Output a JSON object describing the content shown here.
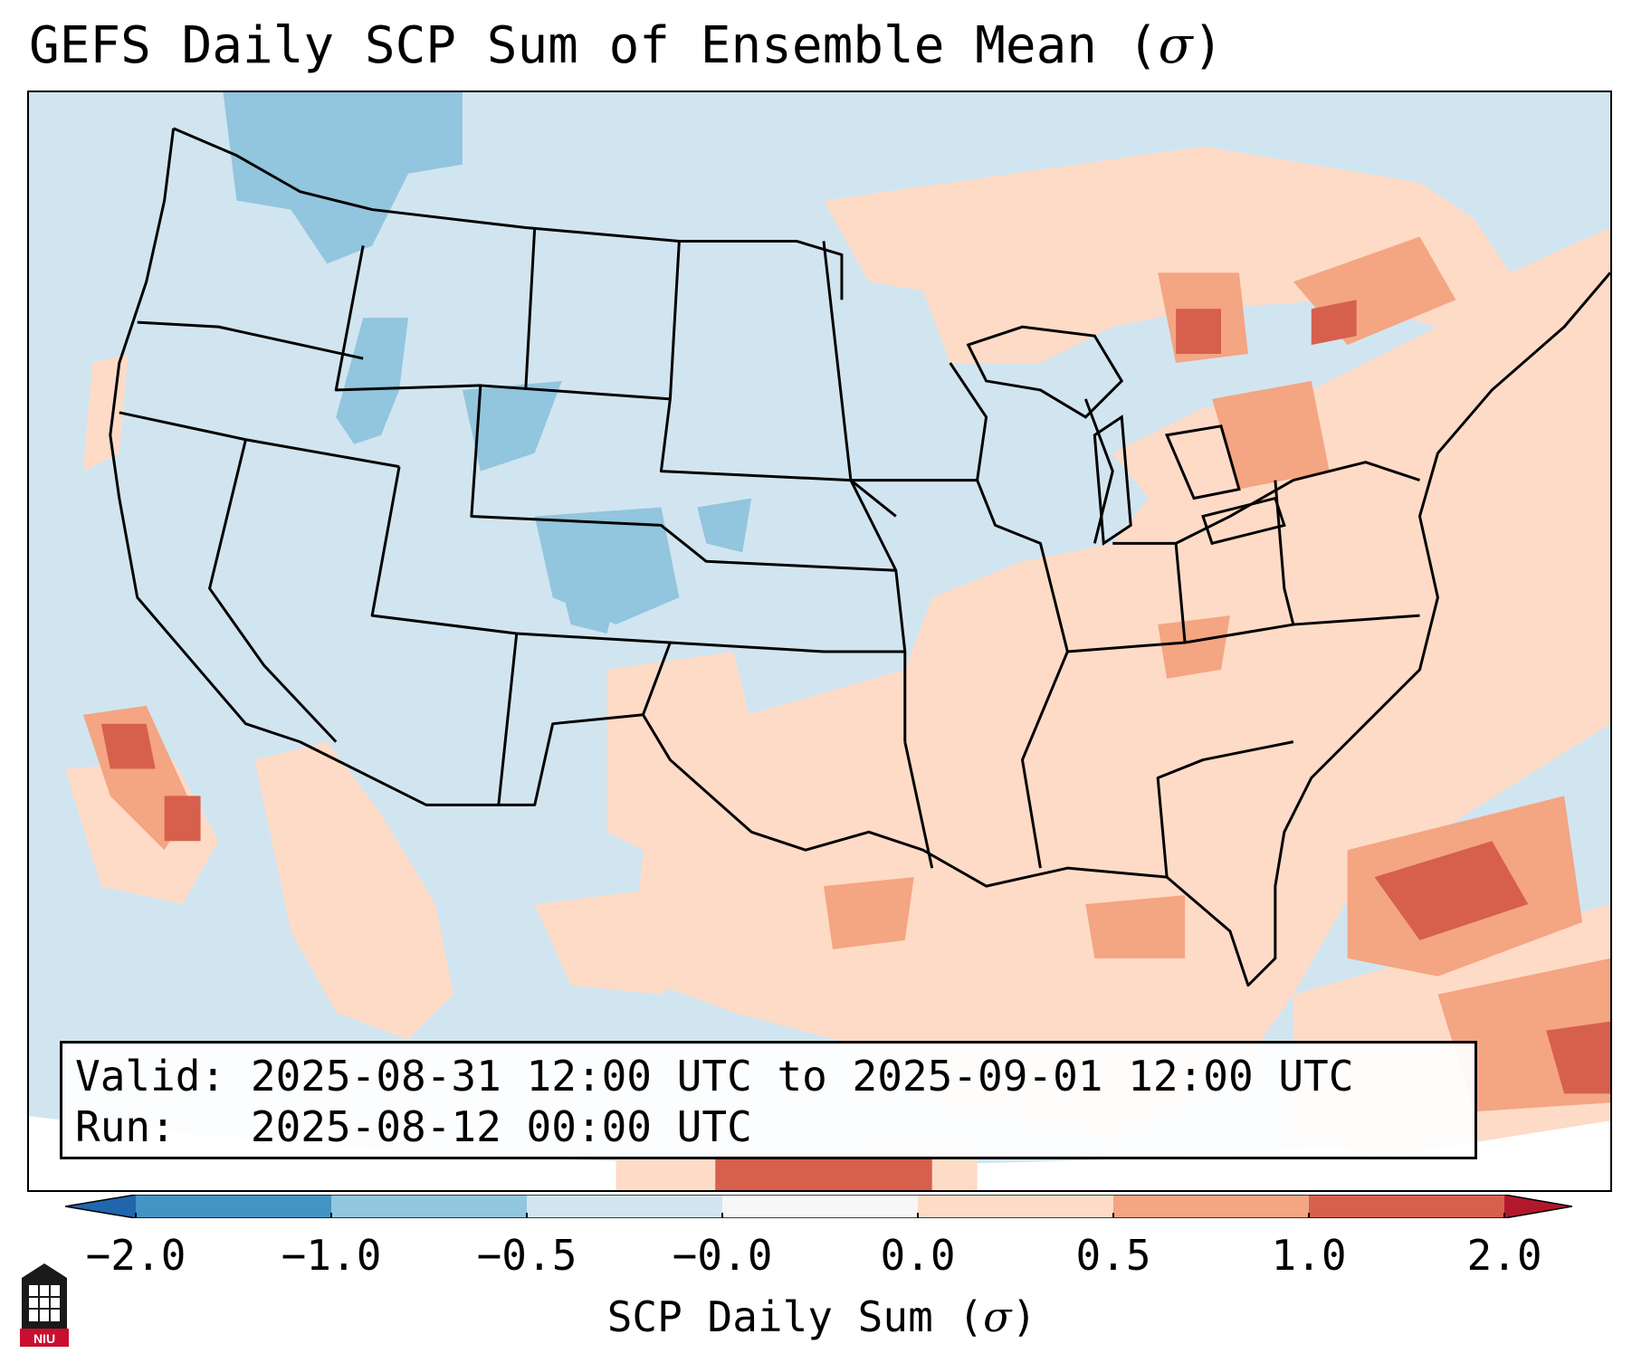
{
  "title": {
    "text": "GEFS Daily SCP Sum of Ensemble Mean (",
    "sigma": "σ",
    "close": ")"
  },
  "valid_box": {
    "valid_label": "Valid:",
    "valid_value": "2025-08-31 12:00 UTC to 2025-09-01 12:00 UTC",
    "run_label": "Run:",
    "run_value": "2025-08-12 00:00 UTC"
  },
  "colorbar": {
    "label_text": "SCP Daily Sum (",
    "label_sigma": "σ",
    "label_close": ")",
    "ticks": [
      "−2.0",
      "−1.0",
      "−0.5",
      "−0.0",
      "0.0",
      "0.5",
      "1.0",
      "2.0"
    ],
    "colors": {
      "under": "#2166ac",
      "bin_neg2_neg1": "#4393c3",
      "bin_neg1_neg05": "#92c5de",
      "bin_neg05_0": "#d1e5f0",
      "bin_0_0": "#f7f7f7",
      "bin_0_05": "#fddbc7",
      "bin_05_1": "#f4a582",
      "bin_1_2": "#d6604d",
      "over": "#b2182b"
    }
  },
  "logo": {
    "text": "NIU",
    "color": "#c8102e"
  }
}
